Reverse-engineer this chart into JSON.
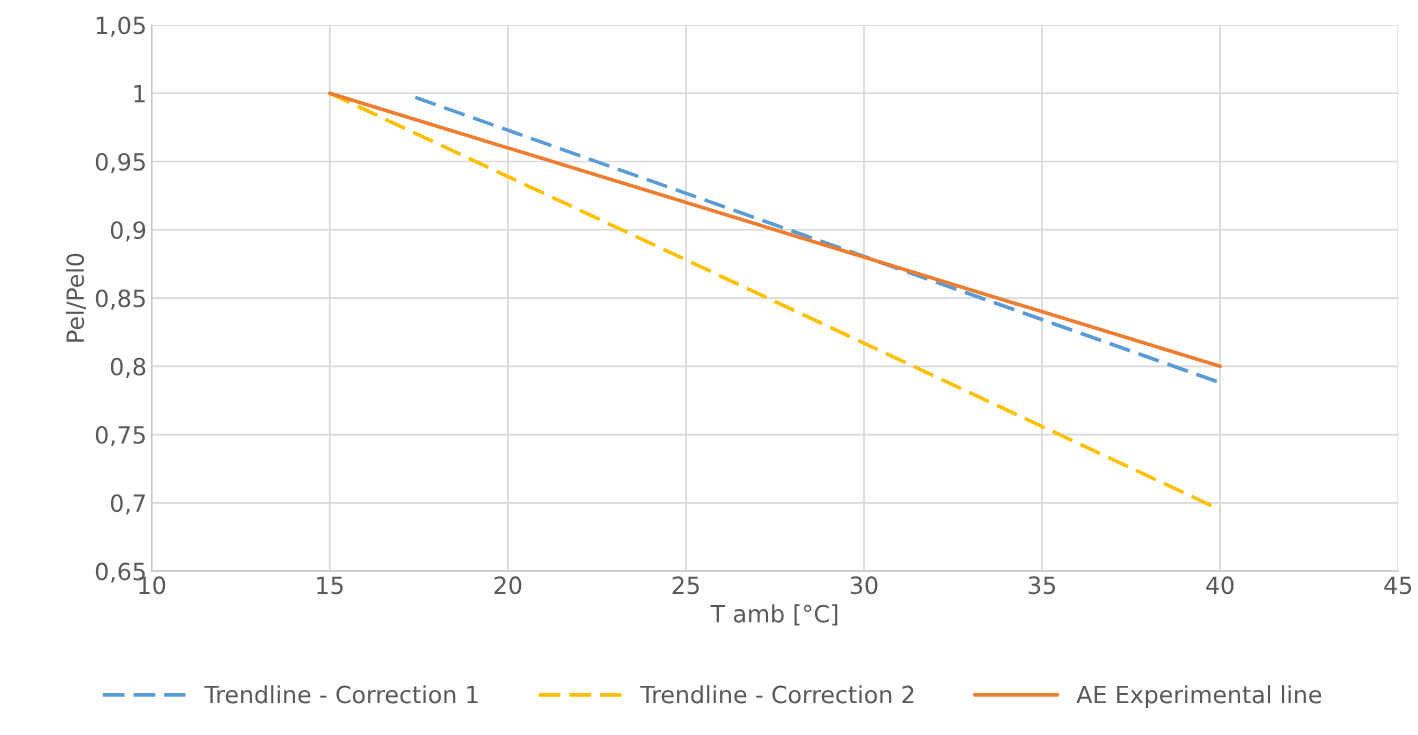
{
  "chart_data": {
    "type": "line",
    "xlabel": "T amb [°C]",
    "ylabel": "Pel/Pel0",
    "series": [
      {
        "name": "Trendline - Correction 1",
        "color": "#5b9bd5",
        "line_style": "dashed",
        "x": [
          17.4,
          40
        ],
        "values": [
          0.997,
          0.788
        ]
      },
      {
        "name": "Trendline - Correction 2",
        "color": "#ffc000",
        "line_style": "dashed",
        "x": [
          15,
          40
        ],
        "values": [
          1.0,
          0.695
        ]
      },
      {
        "name": "AE Experimental line",
        "color": "#ed7d31",
        "line_style": "solid",
        "x": [
          15,
          40
        ],
        "values": [
          1.0,
          0.8
        ]
      }
    ],
    "xlim": [
      10,
      45
    ],
    "xticks": [
      10,
      15,
      20,
      25,
      30,
      35,
      40,
      45
    ],
    "ylim": [
      0.65,
      1.05
    ],
    "yticks": [
      {
        "value": 0.65,
        "label": "0,65"
      },
      {
        "value": 0.7,
        "label": "0,7"
      },
      {
        "value": 0.75,
        "label": "0,75"
      },
      {
        "value": 0.8,
        "label": "0,8"
      },
      {
        "value": 0.85,
        "label": "0,85"
      },
      {
        "value": 0.9,
        "label": "0,9"
      },
      {
        "value": 0.95,
        "label": "0,95"
      },
      {
        "value": 1,
        "label": "1"
      },
      {
        "value": 1.05,
        "label": "1,05"
      }
    ],
    "grid": true,
    "legend": "bottom",
    "marker": "none"
  }
}
